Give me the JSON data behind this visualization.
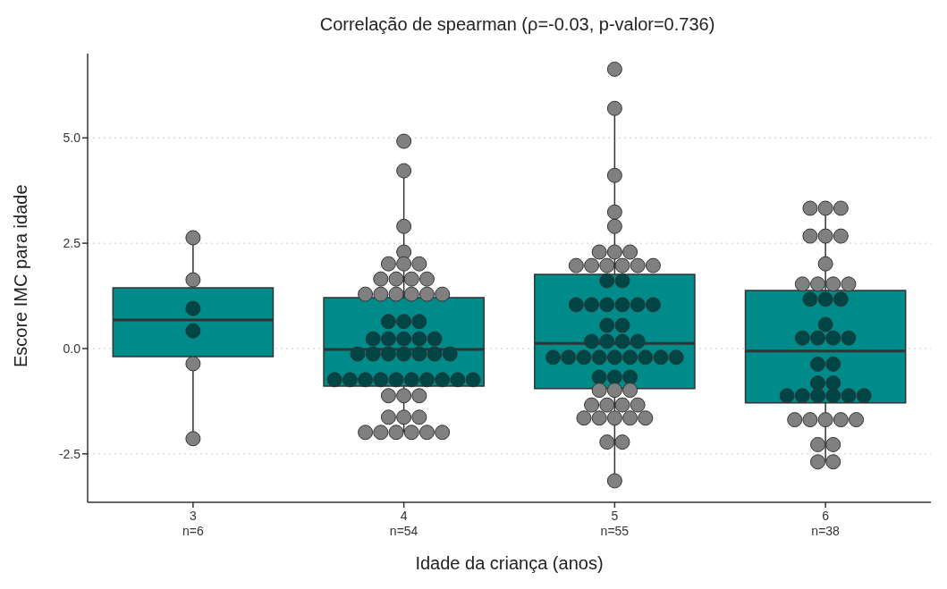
{
  "chart_data": {
    "type": "box",
    "title": "Correlação de spearman (ρ=-0.03, p-valor=0.736)",
    "xlabel": "Idade da criança (anos)",
    "ylabel": "Escore IMC para idade",
    "categories": [
      "3\nn=6",
      "4\nn=54",
      "5\nn=55",
      "6\nn=38"
    ],
    "color": "#008b8b",
    "boxes": [
      {
        "low": -2.14,
        "q1": -0.19,
        "median": 0.68,
        "q3": 1.44,
        "high": 2.63
      },
      {
        "low": -1.99,
        "q1": -0.89,
        "median": -0.02,
        "q3": 1.21,
        "high": 4.22
      },
      {
        "low": -3.14,
        "q1": -0.95,
        "median": 0.12,
        "q3": 1.76,
        "high": 5.7
      },
      {
        "low": -2.69,
        "q1": -1.29,
        "median": -0.06,
        "q3": 1.38,
        "high": 3.33
      }
    ],
    "series": [
      {
        "type": "scatter",
        "colors": [
          "#808080",
          "#808080",
          "#004646",
          "#004646",
          "#808080",
          "#808080",
          "#808080",
          "#808080",
          "#808080",
          "#808080",
          "#808080",
          "#808080",
          "#808080",
          "#808080",
          "#808080",
          "#808080",
          "#808080",
          "#808080",
          "#808080",
          "#808080",
          "#808080",
          "#808080",
          "#808080",
          "#004646",
          "#004646",
          "#004646",
          "#004646",
          "#004646",
          "#004646",
          "#004646",
          "#004646",
          "#004646",
          "#004646",
          "#004646",
          "#004646",
          "#004646",
          "#004646",
          "#004646",
          "#004646",
          "#004646",
          "#004646",
          "#004646",
          "#004646",
          "#004646",
          "#004646",
          "#004646",
          "#004646",
          "#004646",
          "#808080",
          "#808080",
          "#808080",
          "#808080",
          "#808080",
          "#808080",
          "#808080",
          "#808080",
          "#808080",
          "#808080",
          "#808080",
          "#808080",
          "#808080",
          "#808080",
          "#808080",
          "#808080",
          "#808080",
          "#808080",
          "#808080",
          "#808080",
          "#808080",
          "#808080",
          "#808080",
          "#808080",
          "#808080",
          "#808080",
          "#004646",
          "#004646",
          "#004646",
          "#004646",
          "#004646",
          "#004646",
          "#004646",
          "#004646",
          "#004646",
          "#004646",
          "#004646",
          "#004646",
          "#004646",
          "#004646",
          "#004646",
          "#004646",
          "#004646",
          "#004646",
          "#004646",
          "#004646",
          "#004646",
          "#004646",
          "#004646",
          "#004646",
          "#004646",
          "#004646",
          "#808080",
          "#808080",
          "#808080",
          "#808080",
          "#808080",
          "#808080",
          "#808080",
          "#808080",
          "#808080",
          "#808080",
          "#808080",
          "#808080",
          "#808080",
          "#808080",
          "#808080",
          "#808080",
          "#808080",
          "#808080",
          "#808080",
          "#808080",
          "#808080",
          "#808080",
          "#808080",
          "#808080",
          "#808080",
          "#808080",
          "#004646",
          "#004646",
          "#004646",
          "#004646",
          "#004646",
          "#004646",
          "#004646",
          "#004646",
          "#004646",
          "#004646",
          "#004646",
          "#004646",
          "#004646",
          "#004646",
          "#004646",
          "#004646",
          "#004646",
          "#004646",
          "#808080",
          "#808080",
          "#808080",
          "#808080",
          "#808080",
          "#808080",
          "#808080",
          "#808080",
          "#808080"
        ],
        "x": [
          "3\nn=6",
          "3\nn=6",
          "3\nn=6",
          "3\nn=6",
          "3\nn=6",
          "3\nn=6",
          "4\nn=54",
          "4\nn=54",
          "4\nn=54",
          "4\nn=54",
          "4\nn=54",
          "4\nn=54",
          "4\nn=54",
          "4\nn=54",
          "4\nn=54",
          "4\nn=54",
          "4\nn=54",
          "4\nn=54",
          "4\nn=54",
          "4\nn=54",
          "4\nn=54",
          "4\nn=54",
          "4\nn=54",
          "4\nn=54",
          "4\nn=54",
          "4\nn=54",
          "4\nn=54",
          "4\nn=54",
          "4\nn=54",
          "4\nn=54",
          "4\nn=54",
          "4\nn=54",
          "4\nn=54",
          "4\nn=54",
          "4\nn=54",
          "4\nn=54",
          "4\nn=54",
          "4\nn=54",
          "4\nn=54",
          "4\nn=54",
          "4\nn=54",
          "4\nn=54",
          "4\nn=54",
          "4\nn=54",
          "4\nn=54",
          "4\nn=54",
          "4\nn=54",
          "4\nn=54",
          "4\nn=54",
          "4\nn=54",
          "4\nn=54",
          "4\nn=54",
          "4\nn=54",
          "4\nn=54",
          "4\nn=54",
          "4\nn=54",
          "4\nn=54",
          "4\nn=54",
          "4\nn=54",
          "4\nn=54",
          "5\nn=55",
          "5\nn=55",
          "5\nn=55",
          "5\nn=55",
          "5\nn=55",
          "5\nn=55",
          "5\nn=55",
          "5\nn=55",
          "5\nn=55",
          "5\nn=55",
          "5\nn=55",
          "5\nn=55",
          "5\nn=55",
          "5\nn=55",
          "5\nn=55",
          "5\nn=55",
          "5\nn=55",
          "5\nn=55",
          "5\nn=55",
          "5\nn=55",
          "5\nn=55",
          "5\nn=55",
          "5\nn=55",
          "5\nn=55",
          "5\nn=55",
          "5\nn=55",
          "5\nn=55",
          "5\nn=55",
          "5\nn=55",
          "5\nn=55",
          "5\nn=55",
          "5\nn=55",
          "5\nn=55",
          "5\nn=55",
          "5\nn=55",
          "5\nn=55",
          "5\nn=55",
          "5\nn=55",
          "5\nn=55",
          "5\nn=55",
          "5\nn=55",
          "5\nn=55",
          "5\nn=55",
          "5\nn=55",
          "5\nn=55",
          "5\nn=55",
          "5\nn=55",
          "5\nn=55",
          "5\nn=55",
          "5\nn=55",
          "5\nn=55",
          "5\nn=55",
          "5\nn=55",
          "5\nn=55",
          "5\nn=55",
          "6\nn=38",
          "6\nn=38",
          "6\nn=38",
          "6\nn=38",
          "6\nn=38",
          "6\nn=38",
          "6\nn=38",
          "6\nn=38",
          "6\nn=38",
          "6\nn=38",
          "6\nn=38",
          "6\nn=38",
          "6\nn=38",
          "6\nn=38",
          "6\nn=38",
          "6\nn=38",
          "6\nn=38",
          "6\nn=38",
          "6\nn=38",
          "6\nn=38",
          "6\nn=38",
          "6\nn=38",
          "6\nn=38",
          "6\nn=38",
          "6\nn=38",
          "6\nn=38",
          "6\nn=38",
          "6\nn=38",
          "6\nn=38",
          "6\nn=38",
          "6\nn=38",
          "6\nn=38",
          "6\nn=38",
          "6\nn=38",
          "6\nn=38",
          "6\nn=38",
          "6\nn=38",
          "6\nn=38"
        ],
        "values": [
          2.63,
          1.63,
          0.95,
          0.42,
          -0.36,
          -2.14,
          4.92,
          4.22,
          2.9,
          2.29,
          2.01,
          2.01,
          2.01,
          1.65,
          1.65,
          1.65,
          1.65,
          1.29,
          1.29,
          1.29,
          1.29,
          1.29,
          1.29,
          0.64,
          0.64,
          0.64,
          0.23,
          0.23,
          0.23,
          0.23,
          0.23,
          -0.13,
          -0.13,
          -0.13,
          -0.13,
          -0.13,
          -0.13,
          -0.13,
          -0.74,
          -0.74,
          -0.74,
          -0.74,
          -0.74,
          -0.74,
          -0.74,
          -0.74,
          -0.74,
          -0.74,
          -1.12,
          -1.12,
          -1.12,
          -1.63,
          -1.63,
          -1.63,
          -1.99,
          -1.99,
          -1.99,
          -1.99,
          -1.99,
          -1.99,
          6.63,
          5.7,
          4.11,
          3.24,
          2.9,
          2.29,
          2.29,
          2.29,
          1.97,
          1.97,
          1.97,
          1.97,
          1.97,
          1.97,
          1.61,
          1.61,
          1.04,
          1.04,
          1.04,
          1.04,
          1.04,
          1.04,
          0.55,
          0.55,
          0.17,
          0.17,
          0.17,
          0.17,
          -0.21,
          -0.21,
          -0.21,
          -0.21,
          -0.21,
          -0.21,
          -0.21,
          -0.21,
          -0.21,
          -0.68,
          -0.68,
          -0.68,
          -0.99,
          -0.99,
          -0.99,
          -1.34,
          -1.34,
          -1.34,
          -1.34,
          -1.65,
          -1.65,
          -1.65,
          -1.65,
          -1.65,
          -2.22,
          -2.22,
          -3.14,
          3.33,
          3.33,
          3.33,
          2.67,
          2.67,
          2.67,
          2.01,
          1.53,
          1.53,
          1.53,
          1.53,
          1.17,
          1.17,
          1.17,
          0.57,
          0.25,
          0.25,
          0.25,
          0.25,
          -0.37,
          -0.37,
          -0.82,
          -0.82,
          -1.12,
          -1.12,
          -1.12,
          -1.12,
          -1.12,
          -1.12,
          -1.69,
          -1.69,
          -1.69,
          -1.69,
          -1.69,
          -2.28,
          -2.28,
          -2.69,
          -2.69
        ]
      }
    ],
    "ylim": [
      -3.65,
      7.0
    ],
    "yticks": [
      {
        "value": -2.5,
        "label": "-2.5"
      },
      {
        "value": 0,
        "label": "0.0"
      },
      {
        "value": 2.5,
        "label": "2.5"
      },
      {
        "value": 5,
        "label": "5.0"
      }
    ],
    "grid": "y",
    "marker": "circle"
  }
}
